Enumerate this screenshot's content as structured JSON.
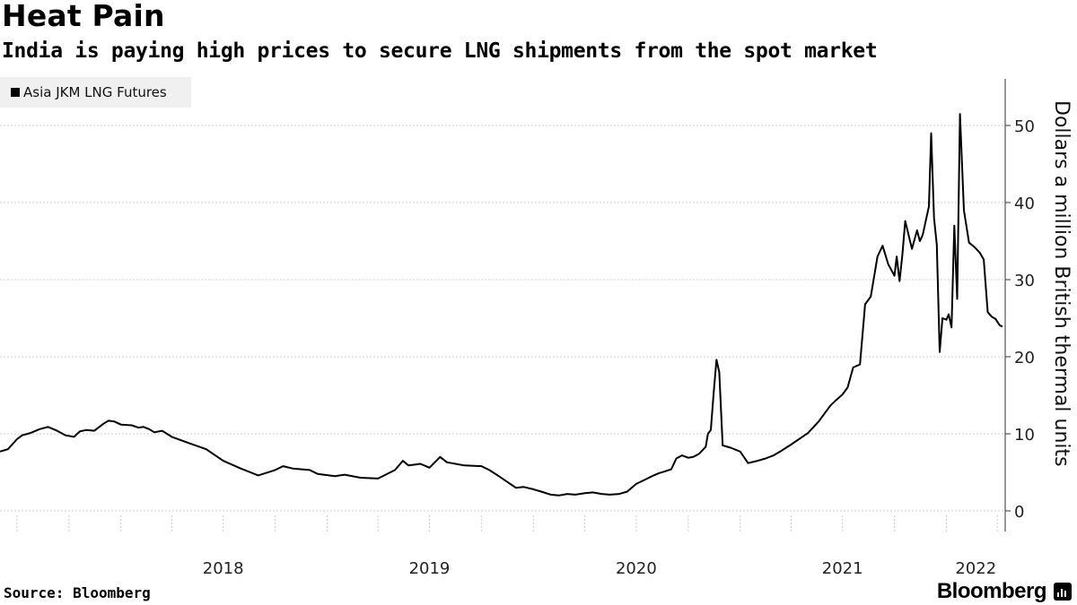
{
  "header": {
    "title": "Heat Pain",
    "subtitle": "India is paying high prices to secure LNG shipments from the spot market"
  },
  "footer": {
    "source": "Source: Bloomberg",
    "brand": "Bloomberg",
    "brand_icon": "bloomberg-terminal-icon"
  },
  "colors": {
    "line": "#000000",
    "grid": "#cccccc",
    "legend_bg": "#f0f0f0"
  },
  "chart_data": {
    "type": "line",
    "title": "Heat Pain",
    "subtitle": "India is paying high prices to secure LNG shipments from the spot market",
    "ylabel": "Dollars a million British thermal units",
    "xlabel": "",
    "legend": [
      "Asia JKM LNG Futures"
    ],
    "legend_position": "top-left",
    "ylim": [
      -2.5,
      56
    ],
    "xlim": [
      "2017-06-01",
      "2022-04-15"
    ],
    "yticks": [
      0,
      10,
      20,
      30,
      40,
      50
    ],
    "ytick_labels": [
      "0",
      "10",
      "20",
      "30",
      "40",
      "50"
    ],
    "xtick_labels": [
      "2018",
      "2019",
      "2020",
      "2021",
      "2022"
    ],
    "grid": "horizontal dotted",
    "y_axis_position": "right",
    "series": [
      {
        "name": "Asia JKM LNG Futures",
        "x": [
          "2017-06-01",
          "2017-06-15",
          "2017-07-01",
          "2017-07-10",
          "2017-07-25",
          "2017-08-10",
          "2017-08-25",
          "2017-09-10",
          "2017-09-25",
          "2017-10-10",
          "2017-10-20",
          "2017-11-01",
          "2017-11-15",
          "2017-12-01",
          "2017-12-10",
          "2017-12-20",
          "2018-01-01",
          "2018-01-20",
          "2018-02-01",
          "2018-02-10",
          "2018-02-20",
          "2018-03-01",
          "2018-03-15",
          "2018-04-01",
          "2018-05-01",
          "2018-06-01",
          "2018-07-01",
          "2018-08-01",
          "2018-09-01",
          "2018-10-01",
          "2018-10-15",
          "2018-11-01",
          "2018-12-01",
          "2018-12-15",
          "2019-01-15",
          "2019-02-01",
          "2019-03-01",
          "2019-04-01",
          "2019-05-01",
          "2019-05-15",
          "2019-05-25",
          "2019-06-05",
          "2019-06-15",
          "2019-07-01",
          "2019-07-20",
          "2019-08-01",
          "2019-09-01",
          "2019-10-01",
          "2019-10-15",
          "2019-11-01",
          "2019-11-15",
          "2019-12-01",
          "2019-12-15",
          "2020-01-01",
          "2020-01-15",
          "2020-02-01",
          "2020-02-15",
          "2020-03-01",
          "2020-03-15",
          "2020-04-01",
          "2020-04-15",
          "2020-05-01",
          "2020-05-15",
          "2020-06-01",
          "2020-06-15",
          "2020-07-01",
          "2020-07-15",
          "2020-08-01",
          "2020-08-10",
          "2020-08-20",
          "2020-09-01",
          "2020-09-10",
          "2020-09-20",
          "2020-10-01",
          "2020-10-10",
          "2020-10-20",
          "2020-11-01",
          "2020-11-05",
          "2020-11-10",
          "2020-11-15",
          "2020-11-20",
          "2020-11-25",
          "2020-12-01",
          "2020-12-15",
          "2021-01-01",
          "2021-01-15",
          "2021-02-01",
          "2021-02-15",
          "2021-03-01",
          "2021-03-15",
          "2021-04-01",
          "2021-04-15",
          "2021-05-01",
          "2021-05-10",
          "2021-05-20",
          "2021-06-01",
          "2021-06-10",
          "2021-06-20",
          "2021-07-01",
          "2021-07-10",
          "2021-07-20",
          "2021-08-01",
          "2021-08-10",
          "2021-08-20",
          "2021-09-01",
          "2021-09-10",
          "2021-09-20",
          "2021-10-01",
          "2021-10-05",
          "2021-10-10",
          "2021-10-15",
          "2021-10-20",
          "2021-11-01",
          "2021-11-10",
          "2021-11-15",
          "2021-11-20",
          "2021-12-01",
          "2021-12-05",
          "2021-12-10",
          "2021-12-15",
          "2021-12-20",
          "2021-12-25",
          "2022-01-01",
          "2022-01-05",
          "2022-01-10",
          "2022-01-15",
          "2022-01-20",
          "2022-01-25",
          "2022-02-01",
          "2022-02-10",
          "2022-02-20",
          "2022-03-01",
          "2022-03-08",
          "2022-03-15",
          "2022-03-22",
          "2022-03-29",
          "2022-04-05",
          "2022-04-10"
        ],
        "values": [
          7.7,
          8.0,
          9.3,
          9.8,
          10.1,
          10.6,
          10.9,
          10.4,
          9.8,
          9.6,
          10.3,
          10.5,
          10.4,
          11.3,
          11.7,
          11.6,
          11.2,
          11.1,
          10.8,
          10.9,
          10.6,
          10.2,
          10.4,
          9.6,
          8.8,
          8.0,
          6.5,
          5.5,
          4.6,
          5.3,
          5.8,
          5.5,
          5.3,
          4.8,
          4.5,
          4.7,
          4.3,
          4.2,
          5.3,
          6.5,
          5.9,
          6.0,
          6.1,
          5.6,
          7.0,
          6.3,
          5.9,
          5.8,
          5.3,
          4.5,
          3.8,
          3.0,
          3.1,
          2.8,
          2.5,
          2.1,
          2.0,
          2.2,
          2.1,
          2.3,
          2.4,
          2.2,
          2.1,
          2.2,
          2.5,
          3.5,
          4.0,
          4.6,
          4.9,
          5.1,
          5.4,
          6.8,
          7.2,
          6.9,
          7.0,
          7.4,
          8.3,
          10.0,
          10.5,
          15.2,
          19.6,
          18.0,
          8.5,
          8.2,
          7.7,
          6.2,
          6.5,
          6.8,
          7.2,
          7.8,
          8.6,
          9.3,
          10.1,
          10.8,
          11.6,
          12.8,
          13.7,
          14.4,
          15.1,
          16.0,
          18.6,
          19.0,
          26.8,
          27.8,
          33.0,
          34.4,
          32.0,
          30.5,
          33.0,
          29.8,
          33.2,
          37.6,
          34.0,
          36.4,
          35.0,
          35.8,
          39.5,
          49.0,
          38.0,
          34.5,
          20.6,
          25.0,
          24.8,
          25.5,
          23.8,
          37.0,
          27.5,
          51.5,
          39.0,
          34.8,
          34.2,
          33.5,
          32.6,
          25.8,
          25.2,
          24.9,
          24.1,
          23.9
        ]
      }
    ]
  }
}
